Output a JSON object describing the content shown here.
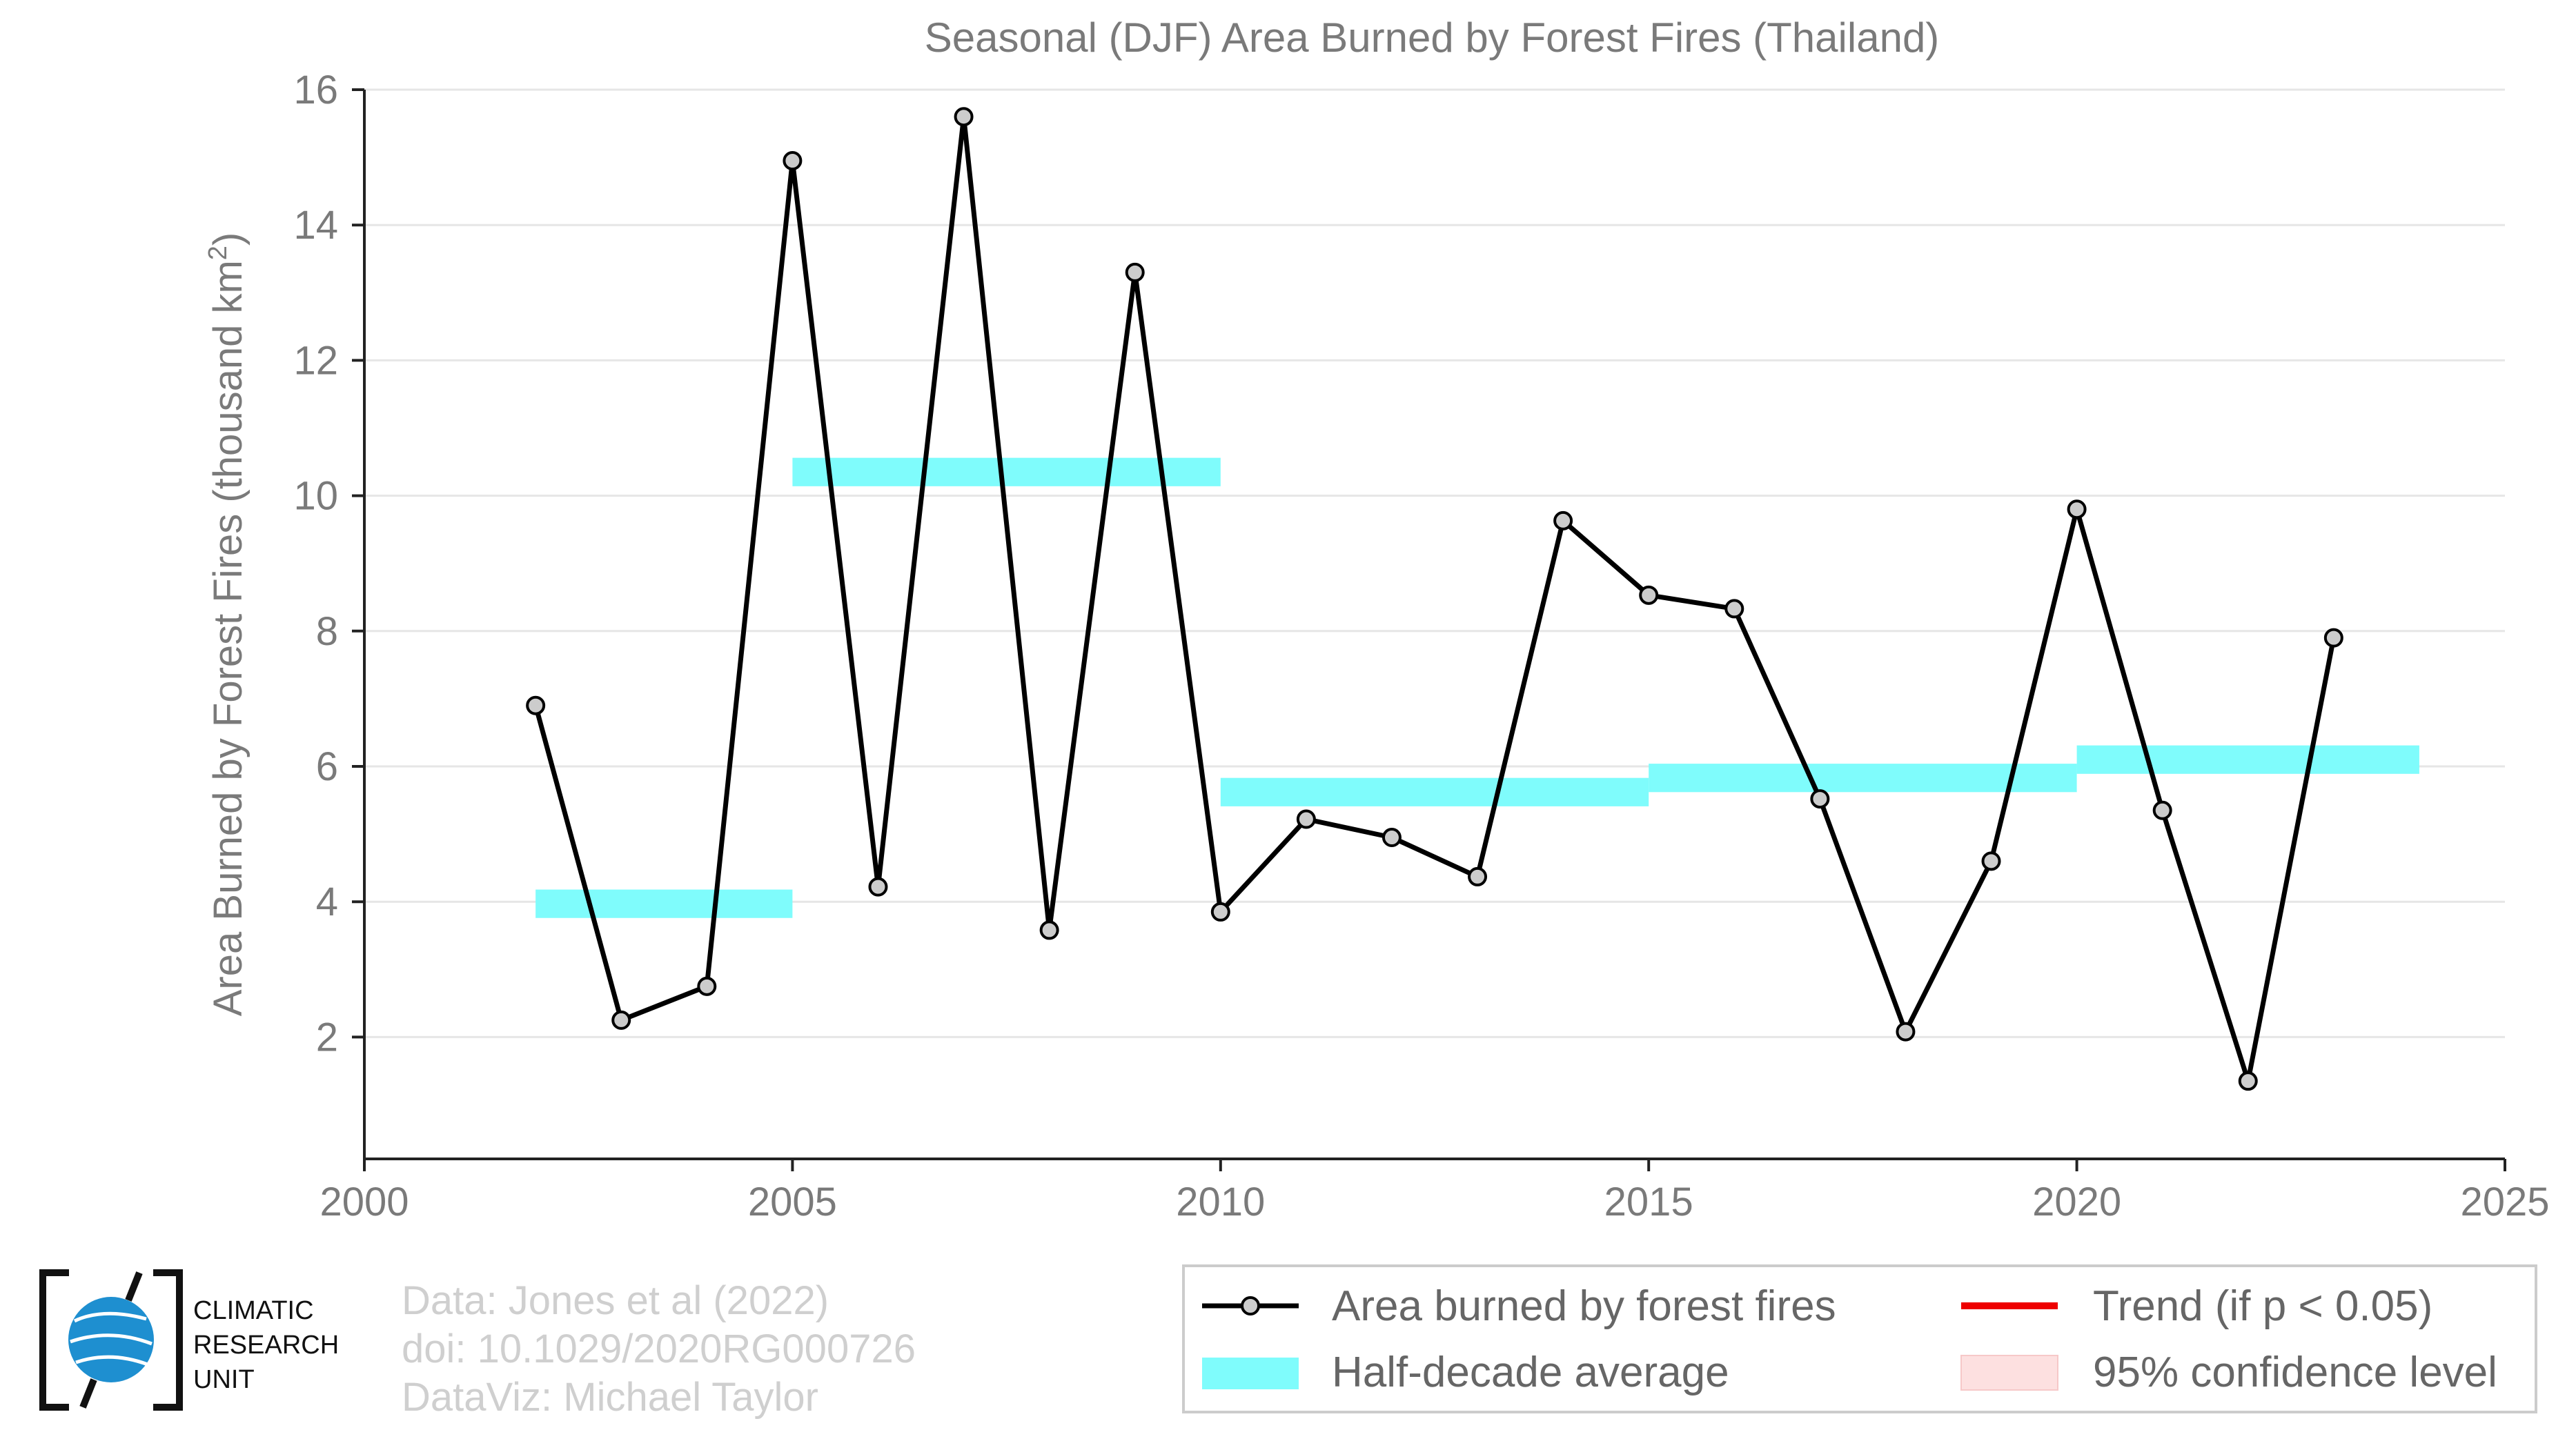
{
  "chart_data": {
    "type": "line",
    "title": "Seasonal (DJF) Area Burned by Forest Fires (Thailand)",
    "xlabel": "",
    "ylabel": "Area Burned by Forest Fires (thousand km",
    "ylabel_superscript": "2",
    "ylabel_close": ")",
    "xlim": [
      2000,
      2025
    ],
    "ylim": [
      0.2,
      16
    ],
    "x_ticks": [
      2000,
      2005,
      2010,
      2015,
      2020,
      2025
    ],
    "y_ticks": [
      2,
      4,
      6,
      8,
      10,
      12,
      14,
      16
    ],
    "grid": "horizontal",
    "series": [
      {
        "name": "Area burned by forest fires",
        "color": "#000000",
        "marker_fill": "#cccccc",
        "x": [
          2002,
          2003,
          2004,
          2005,
          2006,
          2007,
          2008,
          2009,
          2010,
          2011,
          2012,
          2013,
          2014,
          2015,
          2016,
          2017,
          2018,
          2019,
          2020,
          2021,
          2022,
          2023
        ],
        "y": [
          6.9,
          2.25,
          2.75,
          14.95,
          4.22,
          15.6,
          3.58,
          13.3,
          3.85,
          5.22,
          4.95,
          4.37,
          9.63,
          8.53,
          8.33,
          5.52,
          2.08,
          4.6,
          9.8,
          5.35,
          1.35,
          7.9
        ]
      }
    ],
    "half_decade_average": {
      "name": "Half-decade average",
      "color": "#7ffcfc",
      "segments": [
        {
          "x0": 2002,
          "x1": 2005,
          "y": 3.97
        },
        {
          "x0": 2005,
          "x1": 2010,
          "y": 10.35
        },
        {
          "x0": 2010,
          "x1": 2015,
          "y": 5.62
        },
        {
          "x0": 2015,
          "x1": 2020,
          "y": 5.83
        },
        {
          "x0": 2020,
          "x1": 2024,
          "y": 6.1
        }
      ]
    },
    "legend": {
      "placement": "bottom-right",
      "items": [
        {
          "label": "Area burned by forest fires",
          "kind": "line-marker",
          "color": "#000000"
        },
        {
          "label": "Trend (if p < 0.05)",
          "kind": "line",
          "color": "#ee0000"
        },
        {
          "label": "Half-decade average",
          "kind": "band",
          "color": "#7ffcfc"
        },
        {
          "label": "95% confidence level",
          "kind": "band",
          "color": "#fde0e0"
        }
      ]
    },
    "credits": [
      "Data: Jones et al (2022)",
      "doi: 10.1029/2020RG000726",
      "DataViz: Michael Taylor"
    ]
  },
  "logo": {
    "lines": [
      "CLIMATIC",
      "RESEARCH",
      "UNIT"
    ],
    "globe_color": "#1e8fd0"
  }
}
